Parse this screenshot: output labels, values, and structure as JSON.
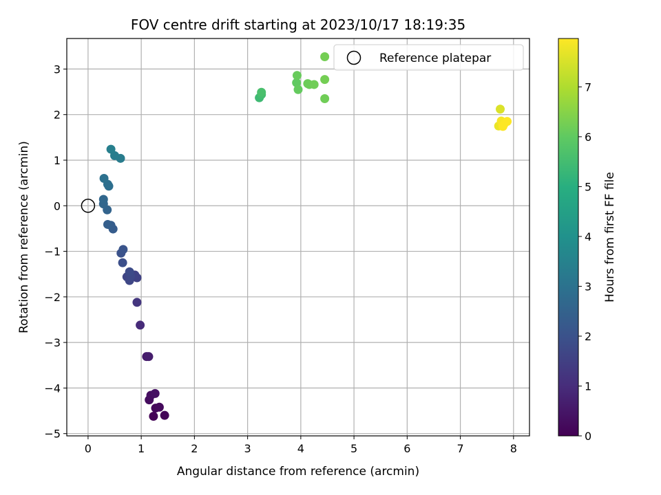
{
  "chart_data": {
    "type": "scatter",
    "title": "FOV centre drift starting at 2023/10/17 18:19:35",
    "xlabel": "Angular distance from reference (arcmin)",
    "ylabel": "Rotation from reference (arcmin)",
    "xlim": [
      -0.4,
      8.3
    ],
    "ylim": [
      -5.05,
      3.67
    ],
    "xticks": [
      0,
      1,
      2,
      3,
      4,
      5,
      6,
      7,
      8
    ],
    "yticks": [
      -5,
      -4,
      -3,
      -2,
      -1,
      0,
      1,
      2,
      3
    ],
    "xtick_labels": [
      "0",
      "1",
      "2",
      "3",
      "4",
      "5",
      "6",
      "7",
      "8"
    ],
    "ytick_labels": [
      "−5",
      "−4",
      "−3",
      "−2",
      "−1",
      "0",
      "1",
      "2",
      "3"
    ],
    "grid": true,
    "colormap": "viridis",
    "colorbar": {
      "label": "Hours from first FF file",
      "range": [
        0,
        7.97
      ],
      "ticks": [
        0,
        1,
        2,
        3,
        4,
        5,
        6,
        7
      ],
      "tick_labels": [
        "0",
        "1",
        "2",
        "3",
        "4",
        "5",
        "6",
        "7"
      ]
    },
    "reference": {
      "x": 0,
      "y": 0,
      "label": "Reference platepar"
    },
    "legend": {
      "placement": "top-right",
      "entries": [
        "Reference platepar"
      ]
    },
    "points": [
      {
        "x": 1.23,
        "y": -4.62,
        "hours": 0.05
      },
      {
        "x": 1.44,
        "y": -4.6,
        "hours": 0.1
      },
      {
        "x": 1.27,
        "y": -4.44,
        "hours": 0.15
      },
      {
        "x": 1.34,
        "y": -4.42,
        "hours": 0.2
      },
      {
        "x": 1.15,
        "y": -4.26,
        "hours": 0.25
      },
      {
        "x": 1.18,
        "y": -4.16,
        "hours": 0.3
      },
      {
        "x": 1.26,
        "y": -4.12,
        "hours": 0.35
      },
      {
        "x": 1.1,
        "y": -3.31,
        "hours": 0.6
      },
      {
        "x": 1.14,
        "y": -3.31,
        "hours": 0.65
      },
      {
        "x": 0.98,
        "y": -2.62,
        "hours": 0.95
      },
      {
        "x": 0.92,
        "y": -2.12,
        "hours": 1.25
      },
      {
        "x": 0.92,
        "y": -1.58,
        "hours": 1.55
      },
      {
        "x": 0.88,
        "y": -1.52,
        "hours": 1.6
      },
      {
        "x": 0.73,
        "y": -1.56,
        "hours": 1.65
      },
      {
        "x": 0.78,
        "y": -1.64,
        "hours": 1.7
      },
      {
        "x": 0.8,
        "y": -1.54,
        "hours": 1.75
      },
      {
        "x": 0.78,
        "y": -1.45,
        "hours": 1.8
      },
      {
        "x": 0.65,
        "y": -1.25,
        "hours": 1.9
      },
      {
        "x": 0.62,
        "y": -1.04,
        "hours": 2.0
      },
      {
        "x": 0.66,
        "y": -0.96,
        "hours": 2.05
      },
      {
        "x": 0.47,
        "y": -0.51,
        "hours": 2.3
      },
      {
        "x": 0.43,
        "y": -0.43,
        "hours": 2.35
      },
      {
        "x": 0.37,
        "y": -0.41,
        "hours": 2.4
      },
      {
        "x": 0.36,
        "y": -0.09,
        "hours": 2.55
      },
      {
        "x": 0.29,
        "y": 0.04,
        "hours": 2.6
      },
      {
        "x": 0.29,
        "y": 0.14,
        "hours": 2.65
      },
      {
        "x": 0.39,
        "y": 0.43,
        "hours": 2.85
      },
      {
        "x": 0.37,
        "y": 0.47,
        "hours": 2.9
      },
      {
        "x": 0.3,
        "y": 0.6,
        "hours": 2.95
      },
      {
        "x": 0.61,
        "y": 1.04,
        "hours": 3.3
      },
      {
        "x": 0.5,
        "y": 1.1,
        "hours": 3.35
      },
      {
        "x": 0.43,
        "y": 1.24,
        "hours": 3.4
      },
      {
        "x": 3.22,
        "y": 2.37,
        "hours": 5.4
      },
      {
        "x": 3.26,
        "y": 2.44,
        "hours": 5.5
      },
      {
        "x": 3.26,
        "y": 2.49,
        "hours": 5.6
      },
      {
        "x": 3.92,
        "y": 2.7,
        "hours": 6.0
      },
      {
        "x": 3.95,
        "y": 2.55,
        "hours": 6.05
      },
      {
        "x": 3.93,
        "y": 2.86,
        "hours": 6.1
      },
      {
        "x": 4.13,
        "y": 2.68,
        "hours": 6.15
      },
      {
        "x": 4.16,
        "y": 2.66,
        "hours": 6.15
      },
      {
        "x": 4.25,
        "y": 2.66,
        "hours": 6.2
      },
      {
        "x": 4.45,
        "y": 2.35,
        "hours": 6.2
      },
      {
        "x": 4.45,
        "y": 2.77,
        "hours": 6.25
      },
      {
        "x": 4.45,
        "y": 3.27,
        "hours": 6.25
      },
      {
        "x": 7.75,
        "y": 2.12,
        "hours": 7.55
      },
      {
        "x": 7.72,
        "y": 1.75,
        "hours": 7.75
      },
      {
        "x": 7.78,
        "y": 1.82,
        "hours": 7.85
      },
      {
        "x": 7.77,
        "y": 1.86,
        "hours": 7.9
      },
      {
        "x": 7.82,
        "y": 1.79,
        "hours": 7.95
      },
      {
        "x": 7.88,
        "y": 1.85,
        "hours": 7.97
      },
      {
        "x": 7.8,
        "y": 1.74,
        "hours": 7.97
      }
    ]
  }
}
